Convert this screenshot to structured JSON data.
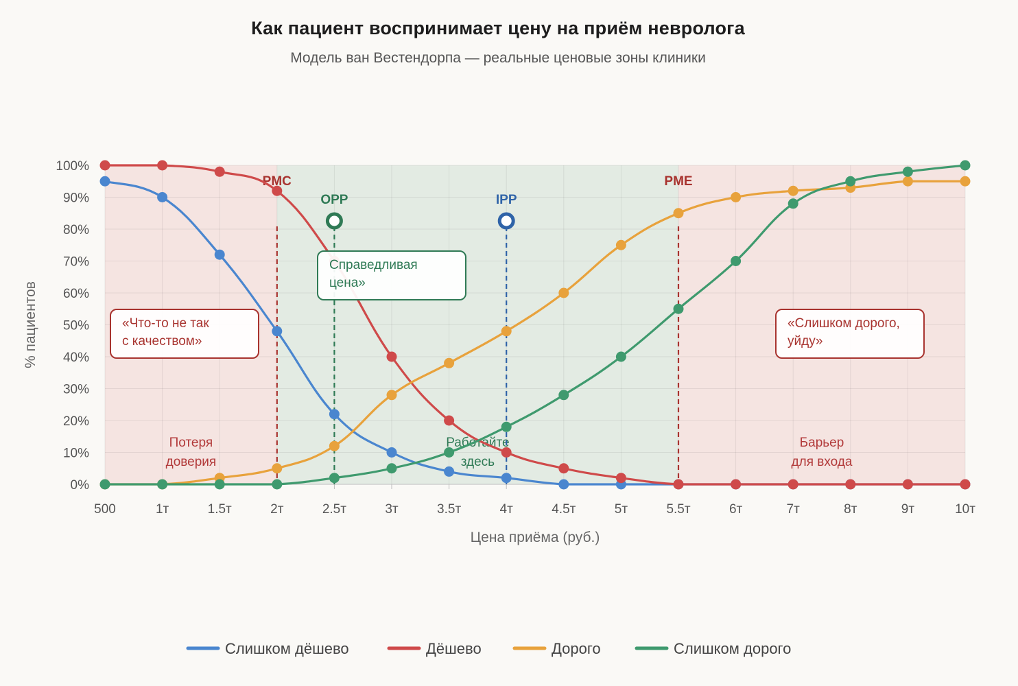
{
  "title": "Как пациент воспринимает цену на приём невролога",
  "subtitle": "Модель ван Вестендорпа — реальные ценовые зоны клиники",
  "chart_data": {
    "type": "line",
    "title": "Как пациент воспринимает цену на приём невролога",
    "subtitle": "Модель ван Вестендорпа — реальные ценовые зоны клиники",
    "xlabel": "Цена приёма (руб.)",
    "ylabel": "% пациентов",
    "categories": [
      "500",
      "1т",
      "1.5т",
      "2т",
      "2.5т",
      "3т",
      "3.5т",
      "4т",
      "4.5т",
      "5т",
      "5.5т",
      "6т",
      "7т",
      "8т",
      "9т",
      "10т"
    ],
    "y_ticks": [
      "0%",
      "10%",
      "20%",
      "30%",
      "40%",
      "50%",
      "60%",
      "70%",
      "80%",
      "90%",
      "100%"
    ],
    "ylim": [
      0,
      100
    ],
    "grid": true,
    "legend_position": "bottom",
    "series": [
      {
        "name": "Слишком дёшево",
        "color": "#4a86cf",
        "values": [
          95,
          90,
          72,
          48,
          22,
          10,
          4,
          2,
          0,
          0,
          0,
          0,
          0,
          0,
          0,
          0
        ]
      },
      {
        "name": "Дёшево",
        "color": "#cf4a4a",
        "values": [
          100,
          100,
          98,
          92,
          70,
          40,
          20,
          10,
          5,
          2,
          0,
          0,
          0,
          0,
          0,
          0
        ]
      },
      {
        "name": "Дорого",
        "color": "#e8a23c",
        "values": [
          0,
          0,
          2,
          5,
          12,
          28,
          38,
          48,
          60,
          75,
          85,
          90,
          92,
          93,
          95,
          95
        ]
      },
      {
        "name": "Слишком дорого",
        "color": "#3f9a6e",
        "values": [
          0,
          0,
          0,
          0,
          2,
          5,
          10,
          18,
          28,
          40,
          55,
          70,
          88,
          95,
          98,
          100
        ]
      }
    ],
    "zones": [
      {
        "from": "500",
        "to": "2т",
        "kind": "danger",
        "label_lines": [
          "Потеря",
          "доверия"
        ],
        "label_color": "#b23a3a"
      },
      {
        "from": "2т",
        "to": "5.5т",
        "kind": "safe",
        "label_lines": [
          "Работайте",
          "здесь"
        ],
        "label_color": "#2f7a55"
      },
      {
        "from": "5.5т",
        "to": "10т",
        "kind": "danger",
        "label_lines": [
          "Барьер",
          "для входа"
        ],
        "label_color": "#b23a3a"
      }
    ],
    "markers": [
      {
        "label": "PMC",
        "x": "2т",
        "color": "#a8332f",
        "circle": false
      },
      {
        "label": "OPP",
        "x": "2.5т",
        "color": "#2f7a55",
        "circle": true
      },
      {
        "label": "IPP",
        "x": "4т",
        "color": "#2f63a8",
        "circle": true
      },
      {
        "label": "PME",
        "x": "5.5т",
        "color": "#a8332f",
        "circle": false
      }
    ],
    "callouts": [
      {
        "lines": [
          "«Что-то не так",
          "с качеством»"
        ],
        "color": "#a8332f"
      },
      {
        "lines": [
          "Справедливая",
          "цена»"
        ],
        "color": "#2f7a55"
      },
      {
        "lines": [
          "«Слишком дорого,",
          "уйду»"
        ],
        "color": "#a8332f"
      }
    ]
  }
}
